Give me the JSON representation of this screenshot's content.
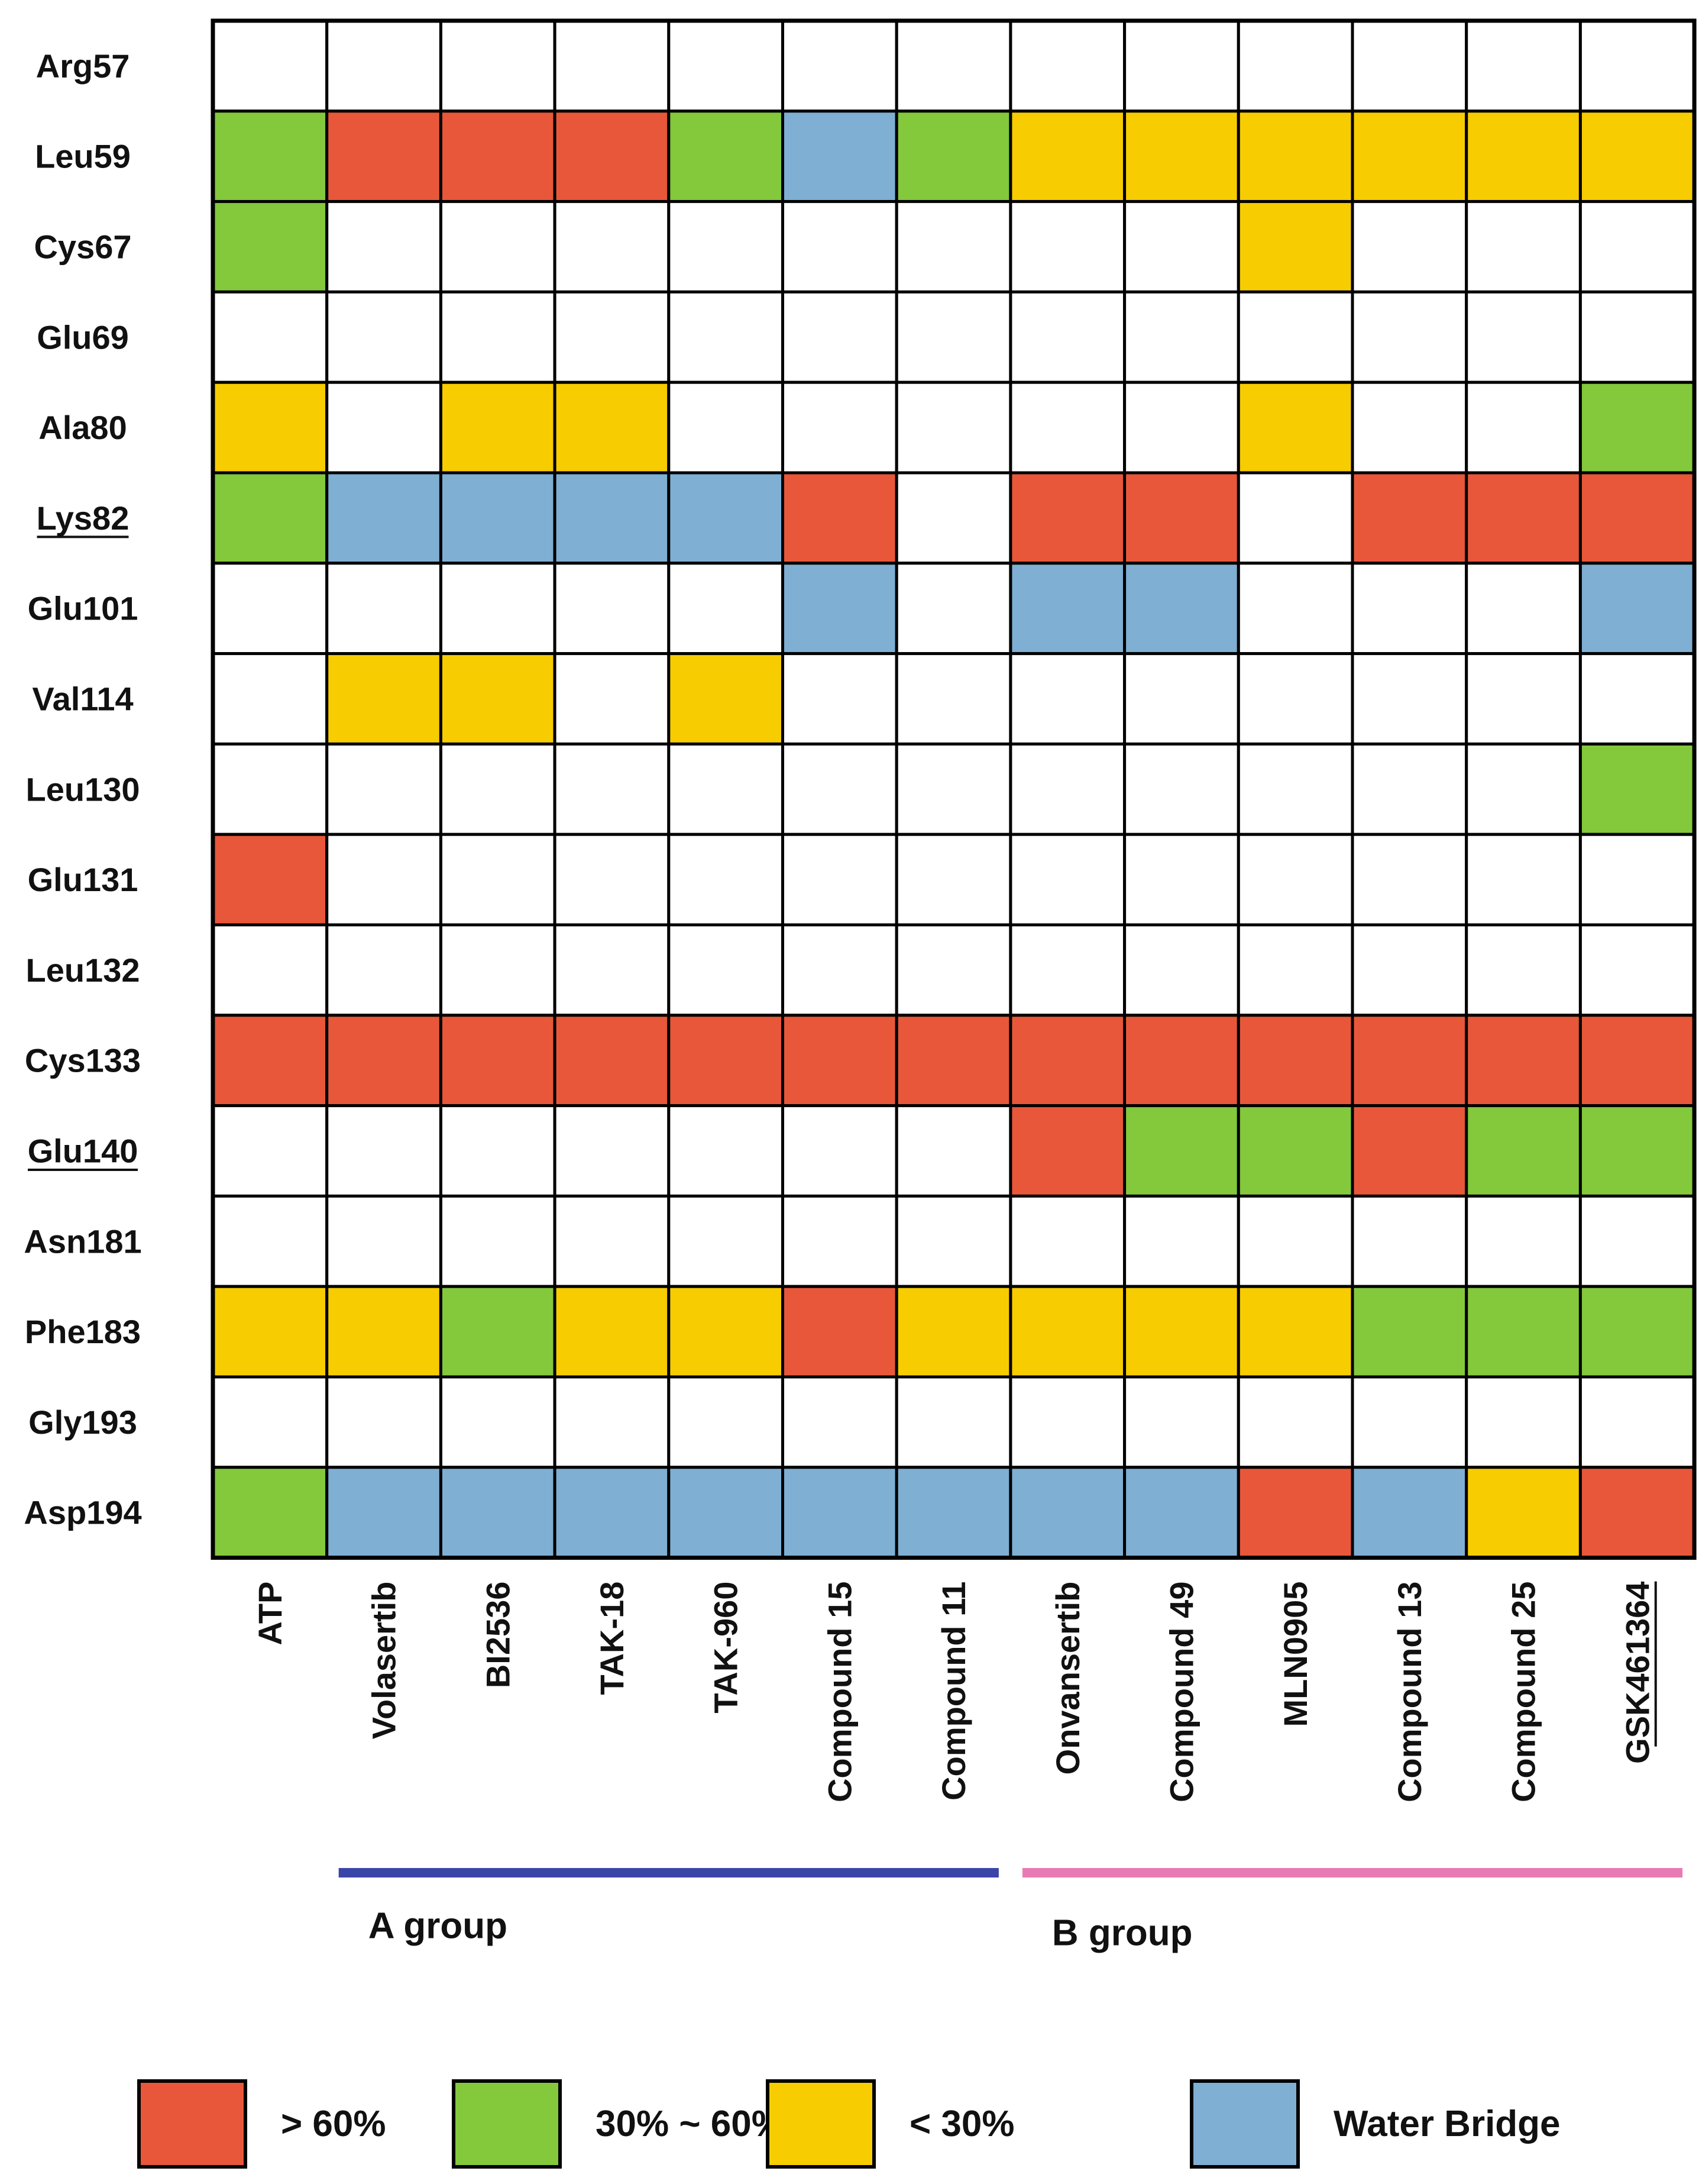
{
  "chart_data": {
    "type": "heatmap",
    "rows": [
      "Arg57",
      "Leu59",
      "Cys67",
      "Glu69",
      "Ala80",
      "Lys82",
      "Glu101",
      "Val114",
      "Leu130",
      "Glu131",
      "Leu132",
      "Cys133",
      "Glu140",
      "Asn181",
      "Phe183",
      "Gly193",
      "Asp194"
    ],
    "underlined_rows": [
      "Lys82",
      "Glu140"
    ],
    "columns": [
      "ATP",
      "Volasertib",
      "BI2536",
      "TAK-18",
      "TAK-960",
      "Compound 15",
      "Compound 11",
      "Onvansertib",
      "Compound 49",
      "MLN0905",
      "Compound 13",
      "Compound 25",
      "GSK461364"
    ],
    "underlined_columns": [
      "GSK461364"
    ],
    "cells": [
      [
        "",
        "",
        "",
        "",
        "",
        "",
        "",
        "",
        "",
        "",
        "",
        "",
        ""
      ],
      [
        "G",
        "R",
        "R",
        "R",
        "G",
        "B",
        "G",
        "Y",
        "Y",
        "Y",
        "Y",
        "Y",
        "Y"
      ],
      [
        "G",
        "",
        "",
        "",
        "",
        "",
        "",
        "",
        "",
        "Y",
        "",
        "",
        ""
      ],
      [
        "",
        "",
        "",
        "",
        "",
        "",
        "",
        "",
        "",
        "",
        "",
        "",
        ""
      ],
      [
        "Y",
        "",
        "Y",
        "Y",
        "",
        "",
        "",
        "",
        "",
        "Y",
        "",
        "",
        "G"
      ],
      [
        "G",
        "B",
        "B",
        "B",
        "B",
        "R",
        "",
        "R",
        "R",
        "",
        "R",
        "R",
        "R"
      ],
      [
        "",
        "",
        "",
        "",
        "",
        "B",
        "",
        "B",
        "B",
        "",
        "",
        "",
        "B"
      ],
      [
        "",
        "Y",
        "Y",
        "",
        "Y",
        "",
        "",
        "",
        "",
        "",
        "",
        "",
        ""
      ],
      [
        "",
        "",
        "",
        "",
        "",
        "",
        "",
        "",
        "",
        "",
        "",
        "",
        "G"
      ],
      [
        "R",
        "",
        "",
        "",
        "",
        "",
        "",
        "",
        "",
        "",
        "",
        "",
        ""
      ],
      [
        "",
        "",
        "",
        "",
        "",
        "",
        "",
        "",
        "",
        "",
        "",
        "",
        ""
      ],
      [
        "R",
        "R",
        "R",
        "R",
        "R",
        "R",
        "R",
        "R",
        "R",
        "R",
        "R",
        "R",
        "R"
      ],
      [
        "",
        "",
        "",
        "",
        "",
        "",
        "",
        "R",
        "G",
        "G",
        "R",
        "G",
        "G"
      ],
      [
        "",
        "",
        "",
        "",
        "",
        "",
        "",
        "",
        "",
        "",
        "",
        "",
        ""
      ],
      [
        "Y",
        "Y",
        "G",
        "Y",
        "Y",
        "R",
        "Y",
        "Y",
        "Y",
        "Y",
        "G",
        "G",
        "G"
      ],
      [
        "",
        "",
        "",
        "",
        "",
        "",
        "",
        "",
        "",
        "",
        "",
        "",
        ""
      ],
      [
        "G",
        "B",
        "B",
        "B",
        "B",
        "B",
        "B",
        "B",
        "B",
        "R",
        "B",
        "Y",
        "R"
      ]
    ],
    "categories": {
      "R": {
        "label": "> 60%",
        "color": "#E8573A"
      },
      "G": {
        "label": "30% ~ 60%",
        "color": "#84C83C"
      },
      "Y": {
        "label": "< 30%",
        "color": "#F7CC00"
      },
      "B": {
        "label": "Water Bridge",
        "color": "#7FAFD3"
      },
      "": {
        "label": "",
        "color": "#FFFFFF"
      }
    },
    "groups": [
      {
        "label": "A group",
        "from": "Volasertib",
        "to": "Compound 11",
        "color": "#3A45A8"
      },
      {
        "label": "B group",
        "from": "Onvansertib",
        "to": "GSK461364",
        "color": "#E87BB4"
      }
    ],
    "legend": {
      "placement": "bottom",
      "order": [
        "R",
        "G",
        "Y",
        "B"
      ]
    },
    "colors": {
      "grid_line": "#000000",
      "text": "#111111",
      "background": "#FFFFFF"
    }
  }
}
